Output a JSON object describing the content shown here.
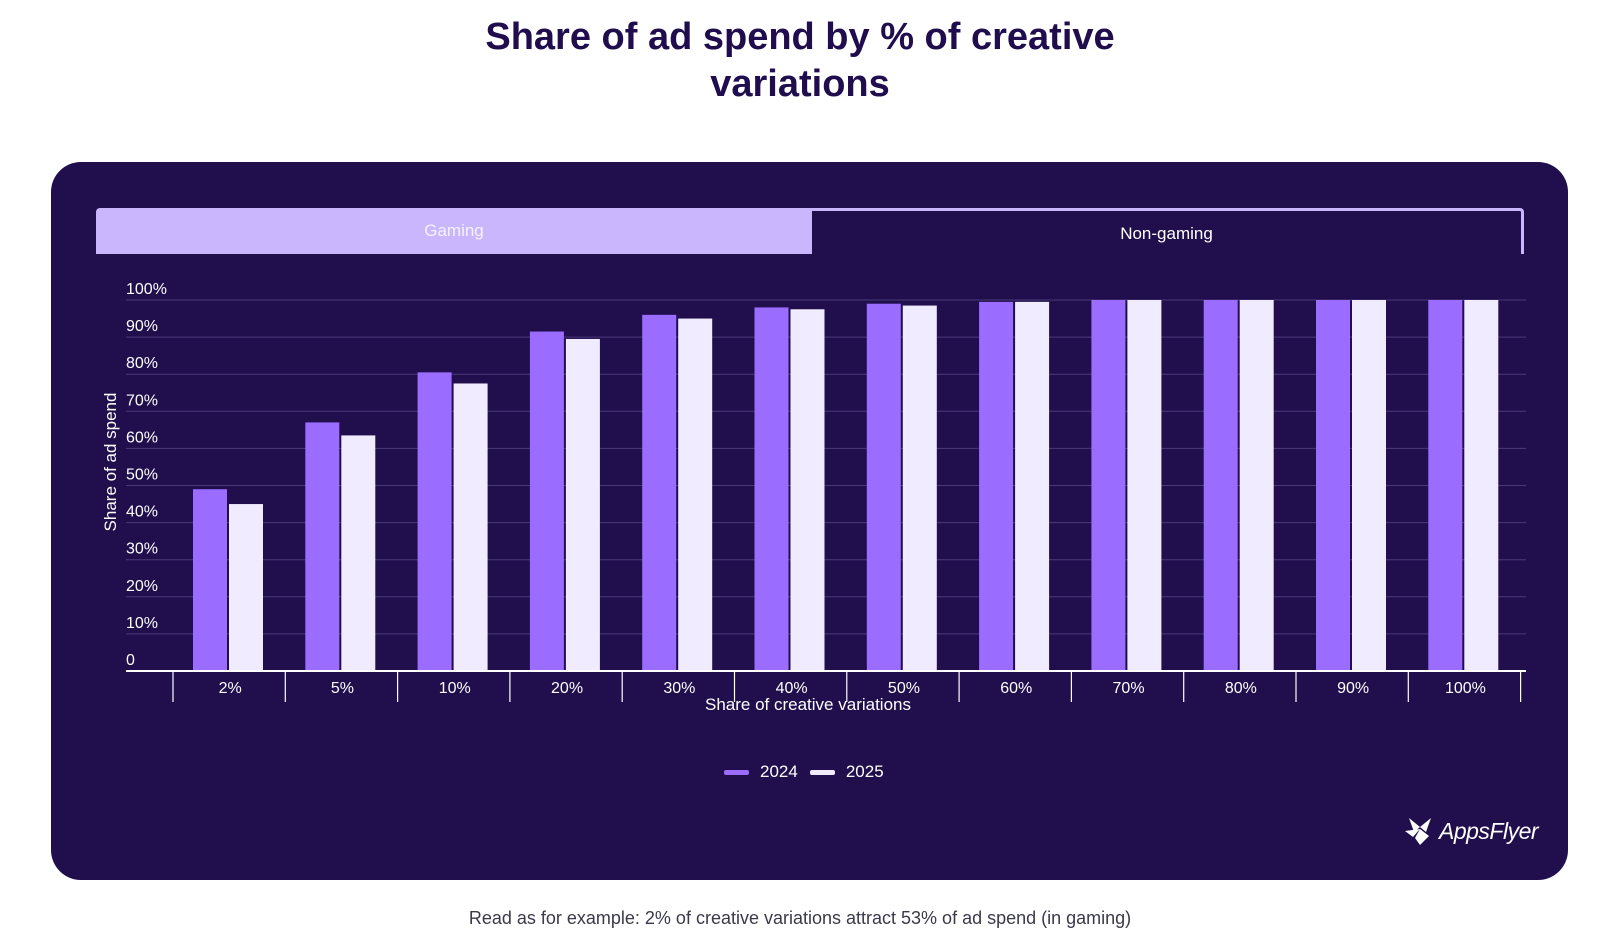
{
  "page": {
    "title_line1": "Share of ad spend by % of creative",
    "title_line2": "variations",
    "footnote": "Read as for example: 2% of creative variations attract 53% of ad spend (in gaming)"
  },
  "tabs": [
    {
      "label": "Gaming",
      "active": false
    },
    {
      "label": "Non-gaming",
      "active": true
    }
  ],
  "logo": {
    "text": "AppsFlyer"
  },
  "colors": {
    "background": "#200e4d",
    "series_2024": "#9a6cff",
    "series_2025": "#f1ebff",
    "grid": "#4a3a78",
    "tab_inactive": "#c9b6fd"
  },
  "chart_data": {
    "type": "bar",
    "xlabel": "Share of creative variations",
    "ylabel": "Share of ad spend",
    "ylim": [
      0,
      100
    ],
    "yticks": [
      "0",
      "10%",
      "20%",
      "30%",
      "40%",
      "50%",
      "60%",
      "70%",
      "80%",
      "90%",
      "100%"
    ],
    "ytick_values": [
      0,
      10,
      20,
      30,
      40,
      50,
      60,
      70,
      80,
      90,
      100
    ],
    "grid": true,
    "legend_position": "bottom-center",
    "categories": [
      "2%",
      "5%",
      "10%",
      "20%",
      "30%",
      "40%",
      "50%",
      "60%",
      "70%",
      "80%",
      "90%",
      "100%"
    ],
    "series": [
      {
        "name": "2024",
        "values": [
          49,
          67,
          80.5,
          91.5,
          96,
          98,
          99,
          99.5,
          100,
          100,
          100,
          100
        ]
      },
      {
        "name": "2025",
        "values": [
          45,
          63.5,
          77.5,
          89.5,
          95,
          97.5,
          98.5,
          99.5,
          100,
          100,
          100,
          100
        ]
      }
    ]
  }
}
